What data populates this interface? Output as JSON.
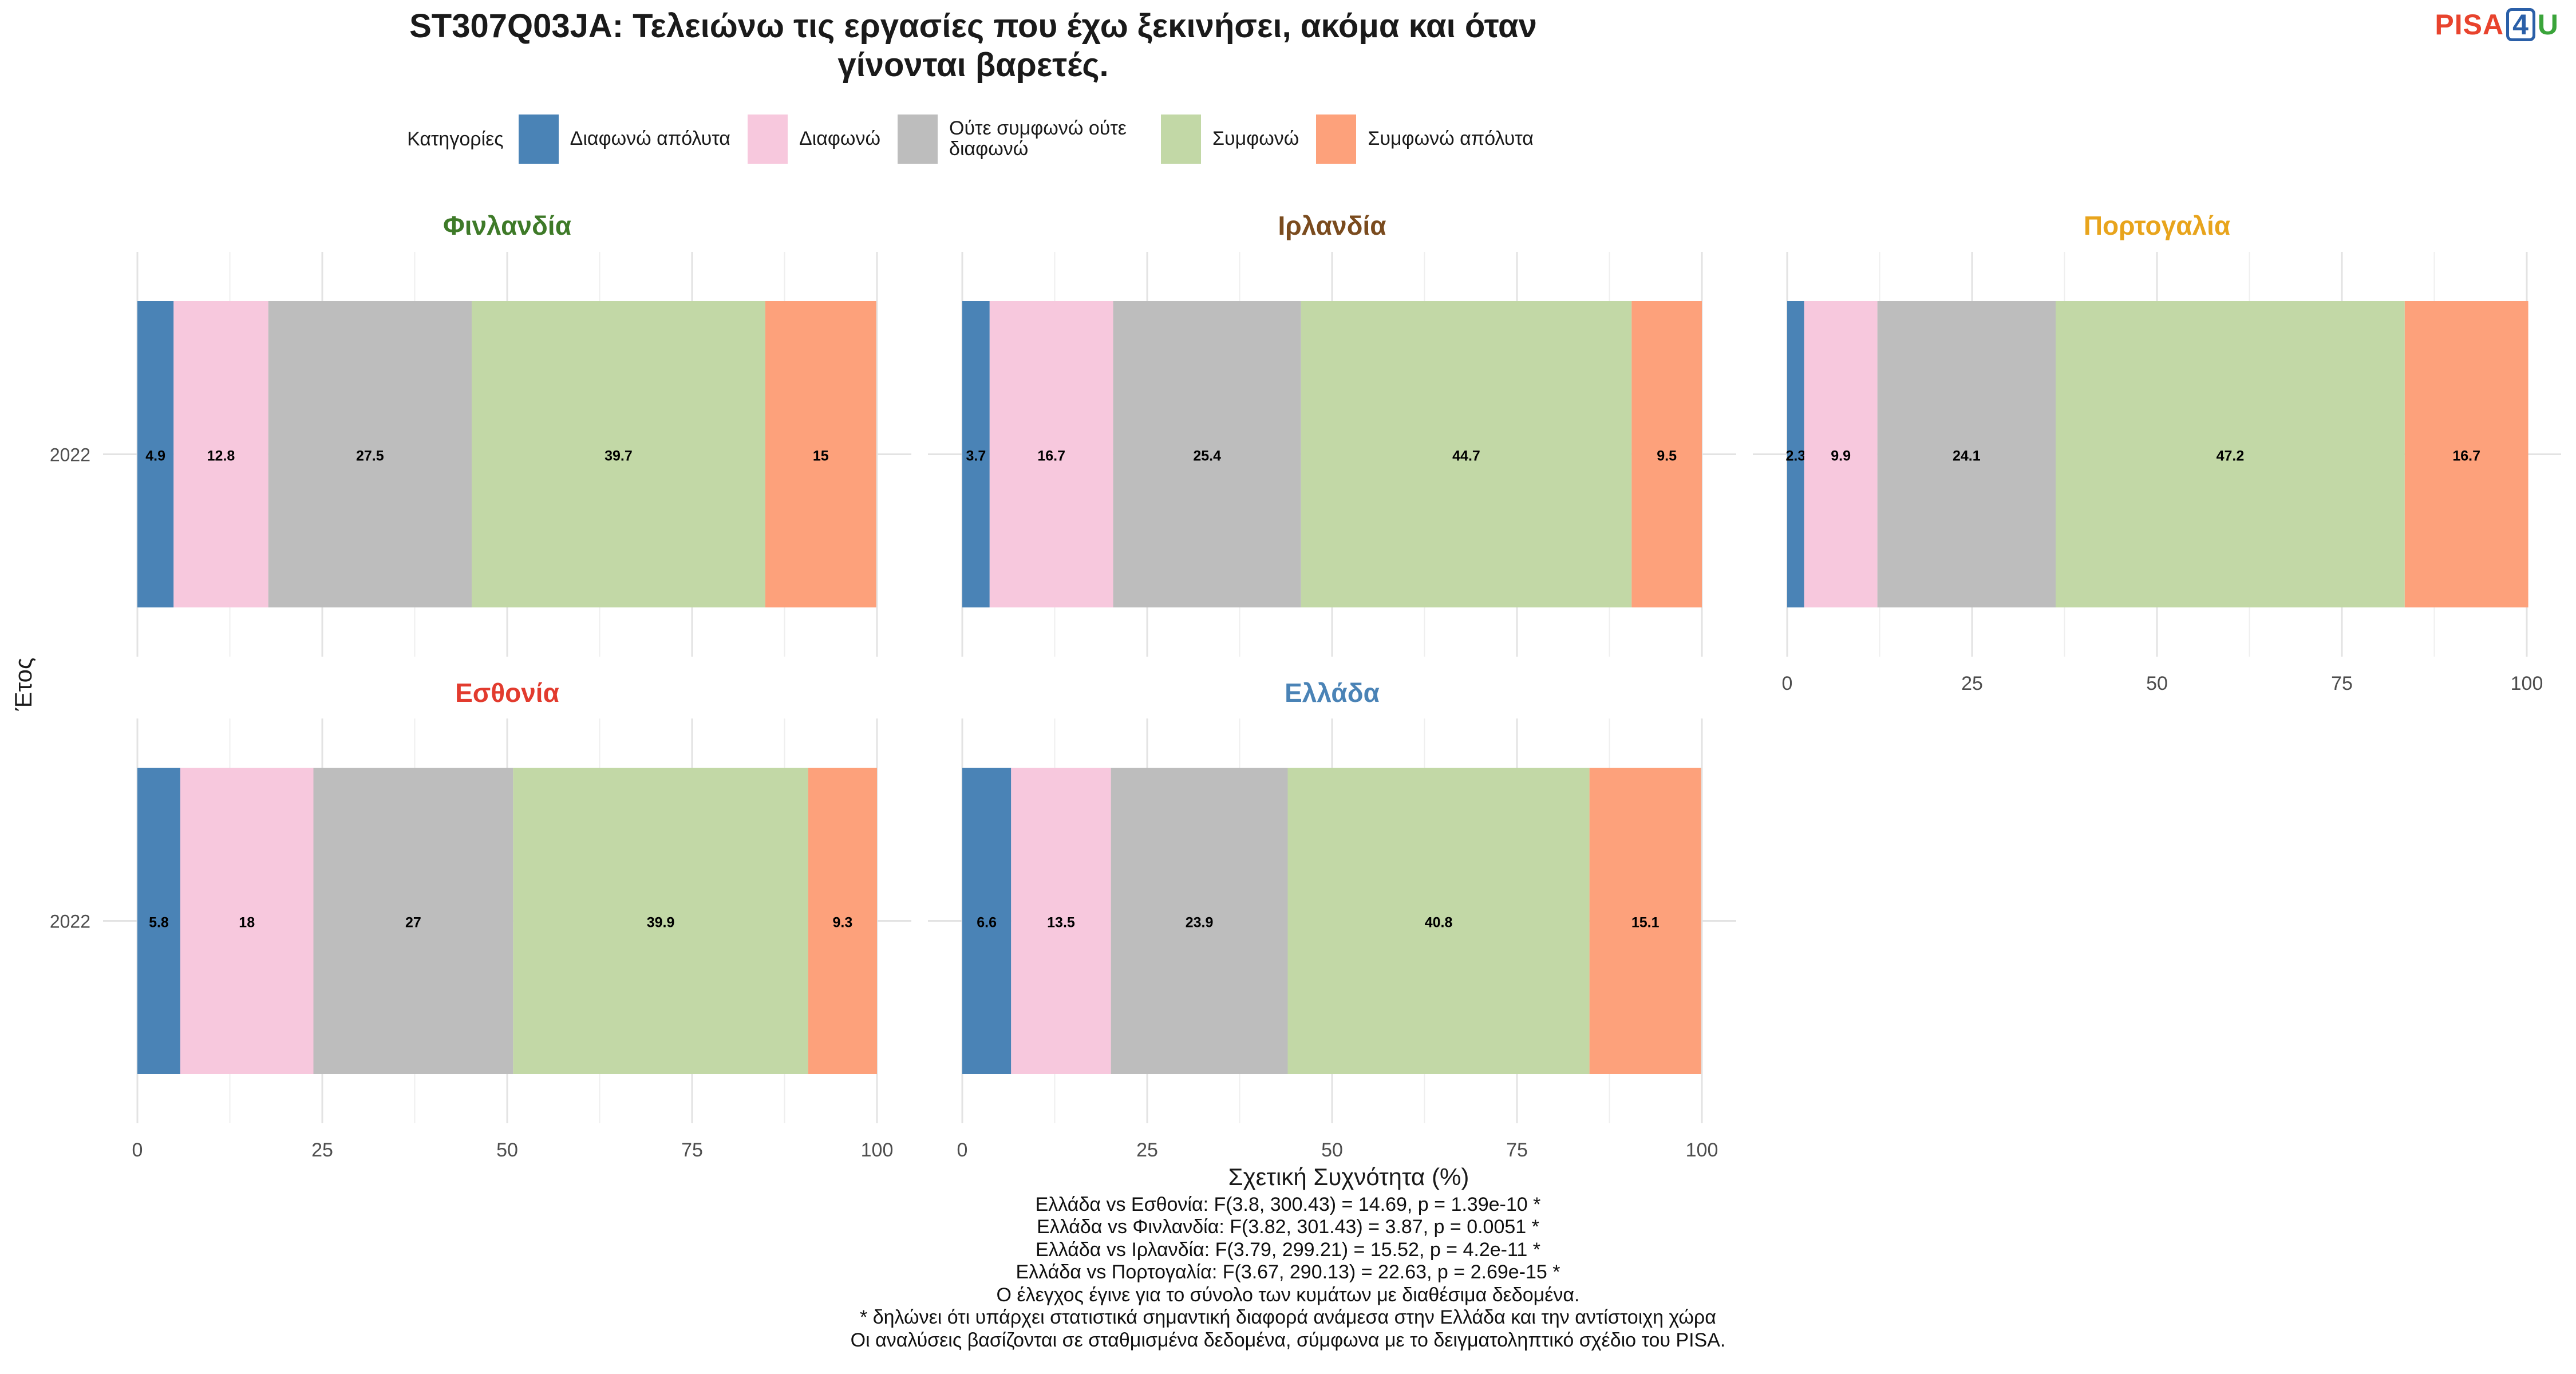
{
  "title_line1": "ST307Q03JA: Τελειώνω τις εργασίες που έχω ξεκινήσει, ακόμα και όταν",
  "title_line2": "γίνονται βαρετές.",
  "logo": {
    "part1": "PISA",
    "part2": "4",
    "part3": "U"
  },
  "legend_title": "Κατηγορίες",
  "chart_data": {
    "type": "bar",
    "orientation": "horizontal-stacked",
    "xlabel": "Σχετική Συχνότητα (%)",
    "ylabel": "Έτος",
    "xlim": [
      0,
      100
    ],
    "xticks": [
      0,
      25,
      50,
      75,
      100
    ],
    "grid": true,
    "legend_position": "top",
    "categories_label": "Κατηγορίες",
    "series": [
      {
        "name": "Διαφωνώ απόλυτα",
        "color": "#4a83b6"
      },
      {
        "name": "Διαφωνώ",
        "color": "#f7c8dd"
      },
      {
        "name": "Ούτε συμφωνώ ούτε διαφωνώ",
        "color": "#bdbdbd"
      },
      {
        "name": "Συμφωνώ",
        "color": "#c2d8a6"
      },
      {
        "name": "Συμφωνώ απόλυτα",
        "color": "#fda17b"
      }
    ],
    "panels": [
      {
        "country": "Φινλανδία",
        "color": "#3e7a28",
        "year": "2022",
        "values": [
          4.9,
          12.8,
          27.5,
          39.7,
          15
        ]
      },
      {
        "country": "Ιρλανδία",
        "color": "#7a4b1e",
        "year": "2022",
        "values": [
          3.7,
          16.7,
          25.4,
          44.7,
          9.5
        ]
      },
      {
        "country": "Πορτογαλία",
        "color": "#e8a41c",
        "year": "2022",
        "values": [
          2.3,
          9.9,
          24.1,
          47.2,
          16.7
        ]
      },
      {
        "country": "Εσθονία",
        "color": "#e23b2e",
        "year": "2022",
        "values": [
          5.8,
          18,
          27,
          39.9,
          9.3
        ]
      },
      {
        "country": "Ελλάδα",
        "color": "#4a83b6",
        "year": "2022",
        "values": [
          6.6,
          13.5,
          23.9,
          40.8,
          15.1
        ]
      }
    ]
  },
  "footnotes": [
    "Ελλάδα vs Εσθονία: F(3.8, 300.43) = 14.69, p = 1.39e-10 *",
    "Ελλάδα vs Φινλανδία: F(3.82, 301.43) = 3.87, p = 0.0051 *",
    "Ελλάδα vs Ιρλανδία: F(3.79, 299.21) = 15.52, p = 4.2e-11 *",
    "Ελλάδα vs Πορτογαλία: F(3.67, 290.13) = 22.63, p = 2.69e-15 *",
    "Ο έλεγχος έγινε για το σύνολο των κυμάτων με διαθέσιμα δεδομένα.",
    "* δηλώνει ότι υπάρχει στατιστικά σημαντική διαφορά ανάμεσα στην Ελλάδα και την αντίστοιχη χώρα",
    "Οι αναλύσεις βασίζονται σε σταθμισμένα δεδομένα, σύμφωνα με το δειγματοληπτικό σχέδιο του PISA."
  ]
}
